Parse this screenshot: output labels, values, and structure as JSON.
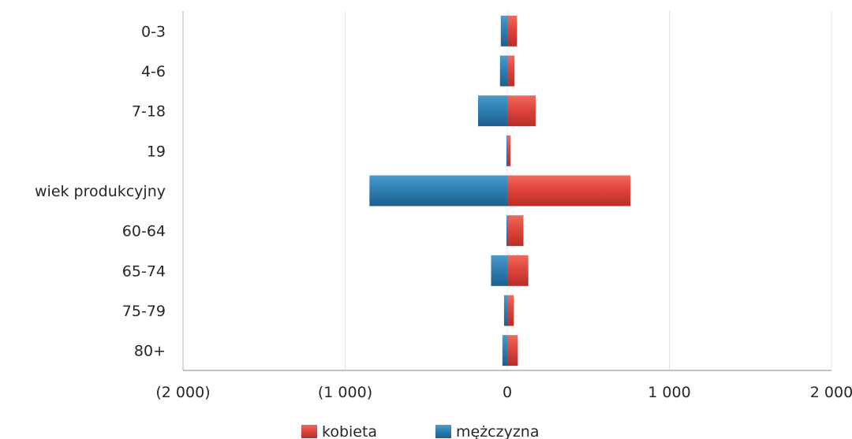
{
  "chart_data": {
    "type": "bar",
    "orientation": "horizontal",
    "layout": "population-pyramid",
    "categories": [
      "0-3",
      "4-6",
      "7-18",
      "19",
      "wiek produkcyjny",
      "60-64",
      "65-74",
      "75-79",
      "80+"
    ],
    "series": [
      {
        "name": "kobieta",
        "color": "#e0453c",
        "values": [
          60,
          45,
          175,
          20,
          760,
          100,
          130,
          40,
          65
        ]
      },
      {
        "name": "mężczyzna",
        "color": "#2f7fb4",
        "values": [
          -40,
          -45,
          -180,
          -5,
          -850,
          -5,
          -100,
          -20,
          -30
        ]
      }
    ],
    "xlim": [
      -2000,
      2000
    ],
    "xticks": [
      -2000,
      -1000,
      0,
      1000,
      2000
    ],
    "xtick_labels": [
      "(2 000)",
      "(1 000)",
      "0",
      "1 000",
      "2 000"
    ],
    "grid": true,
    "legend_position": "bottom",
    "title": "",
    "xlabel": "",
    "ylabel": ""
  }
}
